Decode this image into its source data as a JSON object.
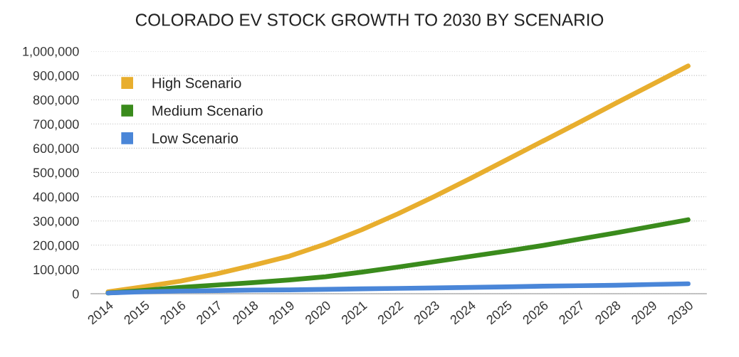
{
  "chart_data": {
    "type": "line",
    "title": "COLORADO EV STOCK GROWTH TO 2030 BY SCENARIO",
    "categories": [
      "2014",
      "2015",
      "2016",
      "2017",
      "2018",
      "2019",
      "2020",
      "2021",
      "2022",
      "2023",
      "2024",
      "2025",
      "2026",
      "2027",
      "2028",
      "2029",
      "2030"
    ],
    "series": [
      {
        "name": "High Scenario",
        "color": "#e8ae2e",
        "values": [
          8000,
          29000,
          52000,
          82000,
          117000,
          155000,
          205000,
          264000,
          330000,
          401000,
          476000,
          553000,
          630000,
          707000,
          785000,
          862000,
          939000
        ]
      },
      {
        "name": "Medium Scenario",
        "color": "#3a8b1c",
        "values": [
          3000,
          14000,
          26000,
          36000,
          46000,
          57000,
          70000,
          89000,
          110000,
          132000,
          154000,
          176000,
          199000,
          225000,
          251000,
          278000,
          305000
        ]
      },
      {
        "name": "Low Scenario",
        "color": "#4a86d8",
        "values": [
          3000,
          8000,
          11000,
          13000,
          15000,
          16000,
          18000,
          20000,
          22000,
          24000,
          26000,
          28000,
          31000,
          33000,
          35000,
          38000,
          41000
        ]
      }
    ],
    "ylim": [
      0,
      1000000
    ],
    "yticks": [
      0,
      {
        "value": 100000,
        "label": "100,000"
      },
      {
        "value": 200000,
        "label": "200,000"
      },
      {
        "value": 300000,
        "label": "300,000"
      },
      {
        "value": 400000,
        "label": "400,000"
      },
      {
        "value": 500000,
        "label": "500,000"
      },
      {
        "value": 600000,
        "label": "600,000"
      },
      {
        "value": 700000,
        "label": "700,000"
      },
      {
        "value": 800000,
        "label": "800,000"
      },
      {
        "value": 900000,
        "label": "900,000"
      },
      {
        "value": 1000000,
        "label": "1,000,000"
      }
    ],
    "grid": "y",
    "legend": "top left",
    "marker": "none",
    "line_style": "solid"
  }
}
